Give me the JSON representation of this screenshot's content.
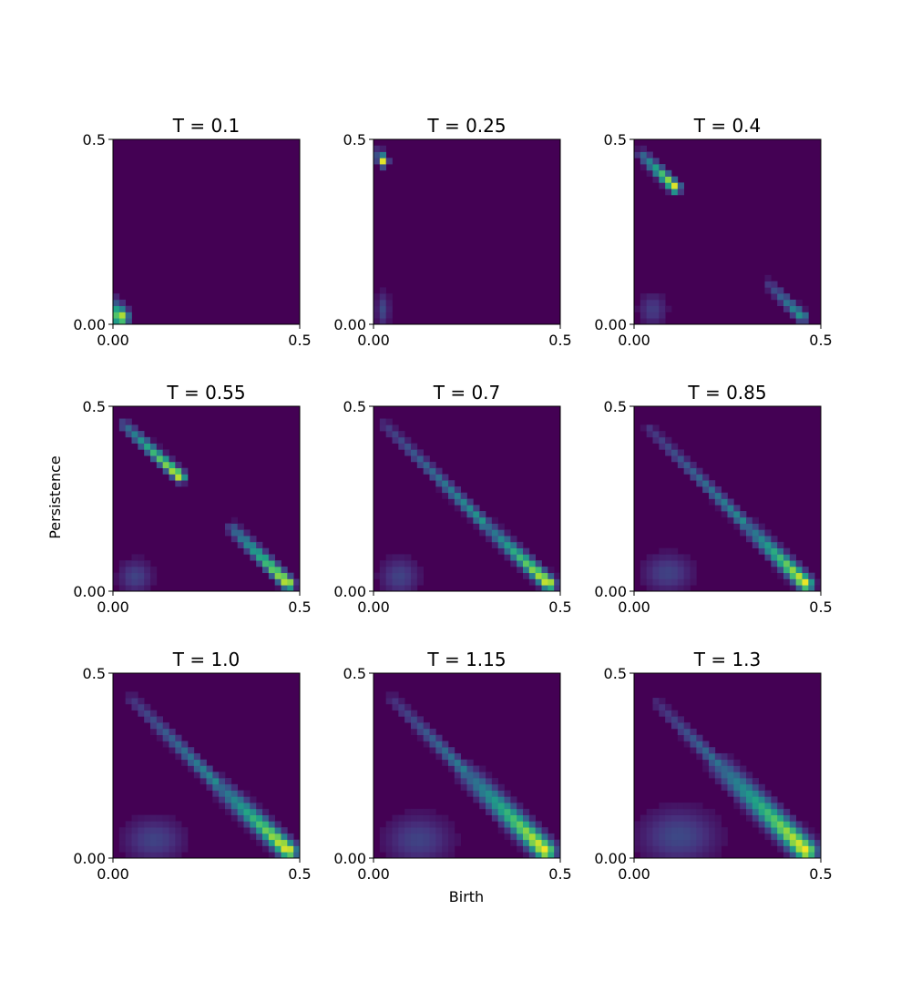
{
  "figure": {
    "xlabel": "Birth",
    "ylabel": "Persistence"
  },
  "colors": {
    "background": "#440154",
    "colormap": [
      "#440154",
      "#46327e",
      "#365c8d",
      "#277f8e",
      "#1fa187",
      "#4ac16d",
      "#a0da39",
      "#fde725"
    ]
  },
  "chart_data": [
    {
      "type": "heatmap",
      "title": "T = 0.1",
      "xlim": [
        0,
        0.5
      ],
      "ylim": [
        0,
        0.5
      ],
      "x_ticks": [
        "0.00",
        "0.5"
      ],
      "y_ticks": [
        "0.00",
        "0.5"
      ],
      "components": [
        {
          "kind": "ridge",
          "x_from": 0.0,
          "y_from": 0.055,
          "x_to": 0.02,
          "y_to": 0.02,
          "peak": 1.0,
          "width": 1.2
        }
      ]
    },
    {
      "type": "heatmap",
      "title": "T = 0.25",
      "xlim": [
        0,
        0.5
      ],
      "ylim": [
        0,
        0.5
      ],
      "x_ticks": [
        "0.00",
        "0.5"
      ],
      "y_ticks": [
        "0.00",
        "0.5"
      ],
      "components": [
        {
          "kind": "ridge",
          "x_from": 0.015,
          "y_from": 0.465,
          "x_to": 0.025,
          "y_to": 0.44,
          "peak": 1.0,
          "width": 0.7
        },
        {
          "kind": "blob",
          "x": 0.025,
          "y": 0.04,
          "sx": 0.012,
          "sy": 0.03,
          "peak": 0.22
        }
      ]
    },
    {
      "type": "heatmap",
      "title": "T = 0.4",
      "xlim": [
        0,
        0.5
      ],
      "ylim": [
        0,
        0.5
      ],
      "x_ticks": [
        "0.00",
        "0.5"
      ],
      "y_ticks": [
        "0.00",
        "0.5"
      ],
      "components": [
        {
          "kind": "ridge",
          "x_from": 0.02,
          "y_from": 0.46,
          "x_to": 0.11,
          "y_to": 0.37,
          "peak": 1.0,
          "width": 0.8
        },
        {
          "kind": "ridge",
          "x_from": 0.36,
          "y_from": 0.11,
          "x_to": 0.45,
          "y_to": 0.02,
          "peak": 0.55,
          "width": 0.8
        },
        {
          "kind": "blob",
          "x": 0.05,
          "y": 0.04,
          "sx": 0.025,
          "sy": 0.03,
          "peak": 0.18
        }
      ]
    },
    {
      "type": "heatmap",
      "title": "T = 0.55",
      "xlim": [
        0,
        0.5
      ],
      "ylim": [
        0,
        0.5
      ],
      "x_ticks": [
        "0.00",
        "0.5"
      ],
      "y_ticks": [
        "0.00",
        "0.5"
      ],
      "components": [
        {
          "kind": "ridge",
          "x_from": 0.03,
          "y_from": 0.45,
          "x_to": 0.18,
          "y_to": 0.31,
          "peak": 1.0,
          "width": 0.8
        },
        {
          "kind": "ridge",
          "x_from": 0.32,
          "y_from": 0.17,
          "x_to": 0.47,
          "y_to": 0.02,
          "peak": 1.0,
          "width": 0.9
        },
        {
          "kind": "blob",
          "x": 0.06,
          "y": 0.04,
          "sx": 0.03,
          "sy": 0.03,
          "peak": 0.2
        }
      ]
    },
    {
      "type": "heatmap",
      "title": "T = 0.7",
      "xlim": [
        0,
        0.5
      ],
      "ylim": [
        0,
        0.5
      ],
      "x_ticks": [
        "0.00",
        "0.5"
      ],
      "y_ticks": [
        "0.00",
        "0.5"
      ],
      "components": [
        {
          "kind": "ridge",
          "x_from": 0.03,
          "y_from": 0.45,
          "x_to": 0.3,
          "y_to": 0.18,
          "peak": 0.55,
          "width": 0.8
        },
        {
          "kind": "ridge",
          "x_from": 0.3,
          "y_from": 0.18,
          "x_to": 0.47,
          "y_to": 0.02,
          "peak": 1.0,
          "width": 1.0
        },
        {
          "kind": "blob",
          "x": 0.07,
          "y": 0.04,
          "sx": 0.035,
          "sy": 0.035,
          "peak": 0.2
        }
      ]
    },
    {
      "type": "heatmap",
      "title": "T = 0.85",
      "xlim": [
        0,
        0.5
      ],
      "ylim": [
        0,
        0.5
      ],
      "x_ticks": [
        "0.00",
        "0.5"
      ],
      "y_ticks": [
        "0.00",
        "0.5"
      ],
      "components": [
        {
          "kind": "ridge",
          "x_from": 0.04,
          "y_from": 0.44,
          "x_to": 0.3,
          "y_to": 0.18,
          "peak": 0.5,
          "width": 0.8
        },
        {
          "kind": "ridge",
          "x_from": 0.3,
          "y_from": 0.18,
          "x_to": 0.46,
          "y_to": 0.02,
          "peak": 1.0,
          "width": 1.1
        },
        {
          "kind": "blob",
          "x": 0.09,
          "y": 0.05,
          "sx": 0.045,
          "sy": 0.035,
          "peak": 0.2
        }
      ]
    },
    {
      "type": "heatmap",
      "title": "T = 1.0",
      "xlim": [
        0,
        0.5
      ],
      "ylim": [
        0,
        0.5
      ],
      "x_ticks": [
        "0.00",
        "0.5"
      ],
      "y_ticks": [
        "0.00",
        "0.5"
      ],
      "components": [
        {
          "kind": "ridge",
          "x_from": 0.05,
          "y_from": 0.43,
          "x_to": 0.28,
          "y_to": 0.2,
          "peak": 0.5,
          "width": 0.9
        },
        {
          "kind": "ridge",
          "x_from": 0.28,
          "y_from": 0.2,
          "x_to": 0.47,
          "y_to": 0.02,
          "peak": 1.0,
          "width": 1.3
        },
        {
          "kind": "blob",
          "x": 0.11,
          "y": 0.05,
          "sx": 0.055,
          "sy": 0.04,
          "peak": 0.2
        }
      ]
    },
    {
      "type": "heatmap",
      "title": "T = 1.15",
      "xlim": [
        0,
        0.5
      ],
      "ylim": [
        0,
        0.5
      ],
      "x_ticks": [
        "0.00",
        "0.5"
      ],
      "y_ticks": [
        "0.00",
        "0.5"
      ],
      "components": [
        {
          "kind": "ridge",
          "x_from": 0.05,
          "y_from": 0.43,
          "x_to": 0.25,
          "y_to": 0.23,
          "peak": 0.45,
          "width": 0.9
        },
        {
          "kind": "ridge",
          "x_from": 0.25,
          "y_from": 0.23,
          "x_to": 0.46,
          "y_to": 0.02,
          "peak": 1.0,
          "width": 1.5
        },
        {
          "kind": "blob",
          "x": 0.12,
          "y": 0.05,
          "sx": 0.06,
          "sy": 0.045,
          "peak": 0.2
        }
      ]
    },
    {
      "type": "heatmap",
      "title": "T = 1.3",
      "xlim": [
        0,
        0.5
      ],
      "ylim": [
        0,
        0.5
      ],
      "x_ticks": [
        "0.00",
        "0.5"
      ],
      "y_ticks": [
        "0.00",
        "0.5"
      ],
      "components": [
        {
          "kind": "ridge",
          "x_from": 0.06,
          "y_from": 0.42,
          "x_to": 0.23,
          "y_to": 0.25,
          "peak": 0.4,
          "width": 0.9
        },
        {
          "kind": "ridge",
          "x_from": 0.23,
          "y_from": 0.25,
          "x_to": 0.46,
          "y_to": 0.02,
          "peak": 1.0,
          "width": 1.6
        },
        {
          "kind": "blob",
          "x": 0.12,
          "y": 0.06,
          "sx": 0.07,
          "sy": 0.05,
          "peak": 0.22
        }
      ]
    }
  ]
}
